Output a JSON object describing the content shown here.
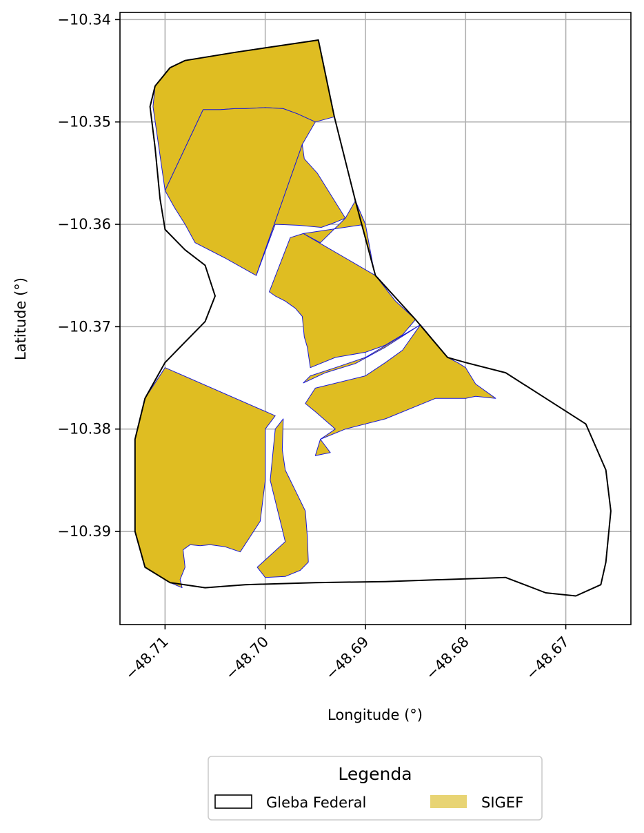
{
  "chart_data": {
    "type": "map",
    "xlabel": "Longitude (°)",
    "ylabel": "Latitude (°)",
    "xlim": [
      -48.7145,
      -48.6635
    ],
    "ylim": [
      -10.3991,
      -10.3393
    ],
    "x_ticks": [
      -48.71,
      -48.7,
      -48.69,
      -48.68,
      -48.67
    ],
    "x_tick_labels": [
      "−48.71",
      "−48.70",
      "−48.69",
      "−48.68",
      "−48.67"
    ],
    "y_ticks": [
      -10.34,
      -10.35,
      -10.36,
      -10.37,
      -10.38,
      -10.39
    ],
    "y_tick_labels": [
      "−10.34",
      "−10.35",
      "−10.36",
      "−10.37",
      "−10.38",
      "−10.39"
    ],
    "grid": true,
    "legend": {
      "title": "Legenda",
      "placement": "bottom-center",
      "entries": [
        {
          "label": "Gleba Federal",
          "style": "outline",
          "color": "#000000"
        },
        {
          "label": "SIGEF",
          "style": "fill",
          "color": "#e8d474"
        }
      ]
    },
    "colors": {
      "sigef_fill": "#dfbd22",
      "sigef_edge": "#1a1ad6",
      "gleba_edge": "#000000"
    },
    "layers": [
      {
        "name": "Gleba Federal",
        "style": "outline",
        "polygons": [
          [
            [
              -48.6947,
              -10.342
            ],
            [
              -48.6931,
              -10.3495
            ],
            [
              -48.691,
              -10.3577
            ],
            [
              -48.689,
              -10.365
            ],
            [
              -48.685,
              -10.3693
            ],
            [
              -48.6818,
              -10.373
            ],
            [
              -48.68,
              -10.3735
            ],
            [
              -48.676,
              -10.3745
            ],
            [
              -48.672,
              -10.377
            ],
            [
              -48.668,
              -10.3795
            ],
            [
              -48.666,
              -10.384
            ],
            [
              -48.6655,
              -10.388
            ],
            [
              -48.666,
              -10.393
            ],
            [
              -48.6665,
              -10.3952
            ],
            [
              -48.669,
              -10.3963
            ],
            [
              -48.672,
              -10.396
            ],
            [
              -48.676,
              -10.3945
            ],
            [
              -48.682,
              -10.3947
            ],
            [
              -48.688,
              -10.3949
            ],
            [
              -48.695,
              -10.395
            ],
            [
              -48.702,
              -10.3952
            ],
            [
              -48.706,
              -10.3955
            ],
            [
              -48.7095,
              -10.395
            ],
            [
              -48.712,
              -10.3935
            ],
            [
              -48.713,
              -10.39
            ],
            [
              -48.713,
              -10.385
            ],
            [
              -48.713,
              -10.381
            ],
            [
              -48.712,
              -10.377
            ],
            [
              -48.71,
              -10.3735
            ],
            [
              -48.708,
              -10.3715
            ],
            [
              -48.706,
              -10.3695
            ],
            [
              -48.705,
              -10.367
            ],
            [
              -48.706,
              -10.364
            ],
            [
              -48.708,
              -10.3625
            ],
            [
              -48.71,
              -10.3605
            ],
            [
              -48.7105,
              -10.3575
            ],
            [
              -48.711,
              -10.3525
            ],
            [
              -48.7115,
              -10.3485
            ],
            [
              -48.711,
              -10.3465
            ],
            [
              -48.7095,
              -10.3447
            ],
            [
              -48.708,
              -10.344
            ],
            [
              -48.703,
              -10.3432
            ],
            [
              -48.6947,
              -10.342
            ]
          ]
        ]
      },
      {
        "name": "SIGEF",
        "style": "fill",
        "polygons": [
          [
            [
              -48.6947,
              -10.342
            ],
            [
              -48.6931,
              -10.3495
            ],
            [
              -48.695,
              -10.35
            ],
            [
              -48.6968,
              -10.3492
            ],
            [
              -48.6982,
              -10.3487
            ],
            [
              -48.7,
              -10.3486
            ],
            [
              -48.702,
              -10.3487
            ],
            [
              -48.703,
              -10.3487
            ],
            [
              -48.7045,
              -10.3488
            ],
            [
              -48.7055,
              -10.3488
            ],
            [
              -48.7062,
              -10.3488
            ],
            [
              -48.71,
              -10.3567
            ],
            [
              -48.7112,
              -10.3485
            ],
            [
              -48.711,
              -10.3465
            ],
            [
              -48.7095,
              -10.3447
            ],
            [
              -48.708,
              -10.344
            ],
            [
              -48.703,
              -10.3432
            ]
          ],
          [
            [
              -48.7062,
              -10.3488
            ],
            [
              -48.7055,
              -10.3488
            ],
            [
              -48.7045,
              -10.3488
            ],
            [
              -48.703,
              -10.3487
            ],
            [
              -48.702,
              -10.3487
            ],
            [
              -48.7,
              -10.3486
            ],
            [
              -48.6982,
              -10.3487
            ],
            [
              -48.6968,
              -10.3492
            ],
            [
              -48.695,
              -10.35
            ],
            [
              -48.6963,
              -10.3522
            ],
            [
              -48.7009,
              -10.365
            ],
            [
              -48.704,
              -10.3633
            ],
            [
              -48.707,
              -10.3618
            ],
            [
              -48.708,
              -10.36
            ],
            [
              -48.7091,
              -10.3583
            ],
            [
              -48.71,
              -10.3567
            ]
          ],
          [
            [
              -48.6963,
              -10.3522
            ],
            [
              -48.6961,
              -10.3536
            ],
            [
              -48.6948,
              -10.355
            ],
            [
              -48.692,
              -10.3594
            ],
            [
              -48.693,
              -10.3598
            ],
            [
              -48.6944,
              -10.3603
            ],
            [
              -48.6966,
              -10.3601
            ],
            [
              -48.699,
              -10.36
            ],
            [
              -48.7009,
              -10.365
            ]
          ],
          [
            [
              -48.692,
              -10.3594
            ],
            [
              -48.6945,
              -10.3618
            ],
            [
              -48.6962,
              -10.3609
            ],
            [
              -48.69,
              -10.36
            ],
            [
              -48.691,
              -10.3577
            ]
          ],
          [
            [
              -48.6962,
              -10.3609
            ],
            [
              -48.6975,
              -10.3613
            ],
            [
              -48.6996,
              -10.3666
            ],
            [
              -48.699,
              -10.367
            ],
            [
              -48.698,
              -10.3675
            ],
            [
              -48.697,
              -10.3682
            ],
            [
              -48.6963,
              -10.369
            ],
            [
              -48.6961,
              -10.371
            ],
            [
              -48.6958,
              -10.372
            ],
            [
              -48.6955,
              -10.374
            ],
            [
              -48.693,
              -10.373
            ],
            [
              -48.69,
              -10.3725
            ],
            [
              -48.688,
              -10.3718
            ],
            [
              -48.6863,
              -10.3708
            ],
            [
              -48.685,
              -10.3693
            ],
            [
              -48.687,
              -10.3675
            ],
            [
              -48.689,
              -10.365
            ]
          ],
          [
            [
              -48.6893,
              -10.3637
            ],
            [
              -48.69,
              -10.36
            ],
            [
              -48.691,
              -10.3577
            ],
            [
              -48.689,
              -10.365
            ]
          ],
          [
            [
              -48.6845,
              -10.3698
            ],
            [
              -48.6818,
              -10.373
            ],
            [
              -48.6808,
              -10.3735
            ],
            [
              -48.68,
              -10.374
            ],
            [
              -48.679,
              -10.3756
            ],
            [
              -48.678,
              -10.3763
            ],
            [
              -48.677,
              -10.377
            ],
            [
              -48.679,
              -10.3768
            ],
            [
              -48.68,
              -10.377
            ],
            [
              -48.683,
              -10.377
            ],
            [
              -48.688,
              -10.379
            ],
            [
              -48.692,
              -10.38
            ],
            [
              -48.6945,
              -10.381
            ],
            [
              -48.695,
              -10.3826
            ],
            [
              -48.6945,
              -10.3825
            ],
            [
              -48.6935,
              -10.3823
            ],
            [
              -48.6945,
              -10.381
            ],
            [
              -48.693,
              -10.38
            ],
            [
              -48.695,
              -10.3783
            ],
            [
              -48.696,
              -10.3775
            ],
            [
              -48.695,
              -10.376
            ],
            [
              -48.69,
              -10.3748
            ],
            [
              -48.688,
              -10.3735
            ],
            [
              -48.6863,
              -10.3723
            ]
          ],
          [
            [
              -48.6845,
              -10.3698
            ],
            [
              -48.688,
              -10.372
            ],
            [
              -48.691,
              -10.3736
            ],
            [
              -48.694,
              -10.3745
            ],
            [
              -48.6962,
              -10.3755
            ],
            [
              -48.6955,
              -10.3748
            ],
            [
              -48.693,
              -10.374
            ],
            [
              -48.69,
              -10.373
            ]
          ],
          [
            [
              -48.71,
              -10.374
            ],
            [
              -48.699,
              -10.3787
            ],
            [
              -48.7,
              -10.38
            ],
            [
              -48.7,
              -10.385
            ],
            [
              -48.7005,
              -10.389
            ],
            [
              -48.7025,
              -10.392
            ],
            [
              -48.704,
              -10.3915
            ],
            [
              -48.7055,
              -10.3913
            ],
            [
              -48.7065,
              -10.3914
            ],
            [
              -48.7075,
              -10.3913
            ],
            [
              -48.7082,
              -10.3918
            ],
            [
              -48.708,
              -10.3935
            ],
            [
              -48.7085,
              -10.3947
            ],
            [
              -48.7083,
              -10.3955
            ],
            [
              -48.7095,
              -10.395
            ],
            [
              -48.712,
              -10.3935
            ],
            [
              -48.713,
              -10.39
            ],
            [
              -48.713,
              -10.385
            ],
            [
              -48.713,
              -10.381
            ],
            [
              -48.712,
              -10.377
            ]
          ],
          [
            [
              -48.6982,
              -10.379
            ],
            [
              -48.699,
              -10.38
            ],
            [
              -48.6995,
              -10.385
            ],
            [
              -48.6985,
              -10.389
            ],
            [
              -48.698,
              -10.391
            ],
            [
              -48.7008,
              -10.3935
            ],
            [
              -48.7,
              -10.3945
            ],
            [
              -48.698,
              -10.3944
            ],
            [
              -48.6965,
              -10.3938
            ],
            [
              -48.6957,
              -10.393
            ],
            [
              -48.6958,
              -10.3905
            ],
            [
              -48.696,
              -10.388
            ],
            [
              -48.697,
              -10.386
            ],
            [
              -48.6975,
              -10.385
            ],
            [
              -48.698,
              -10.384
            ],
            [
              -48.6983,
              -10.382
            ]
          ]
        ]
      }
    ]
  }
}
